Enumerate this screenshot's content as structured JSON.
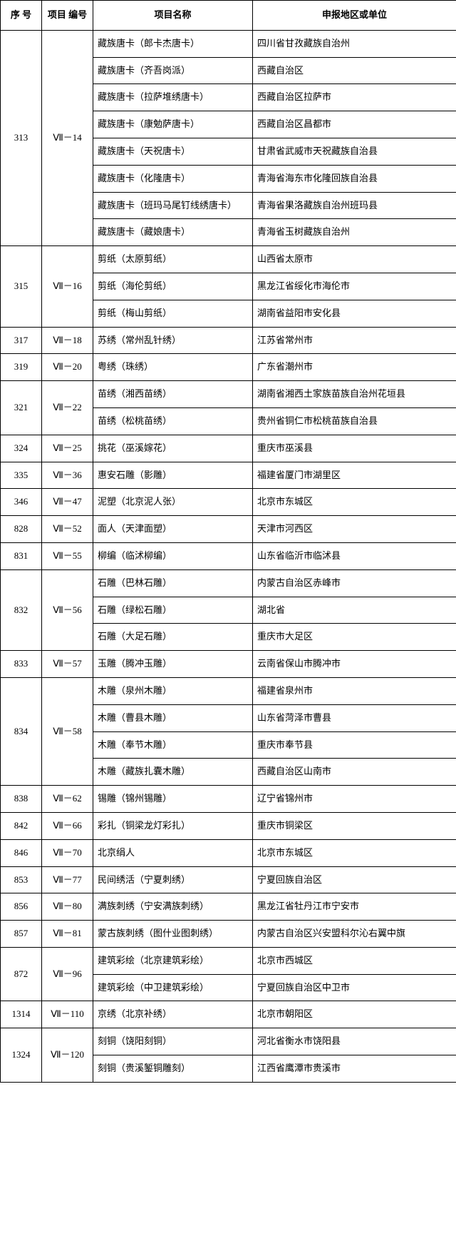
{
  "columns": [
    "序  号",
    "项目\n编号",
    "项目名称",
    "申报地区或单位"
  ],
  "groups": [
    {
      "seq": "313",
      "code": "Ⅶ－14",
      "items": [
        {
          "name": "藏族唐卡（郎卡杰唐卡）",
          "unit": "四川省甘孜藏族自治州"
        },
        {
          "name": "藏族唐卡（齐吾岗派）",
          "unit": "西藏自治区"
        },
        {
          "name": "藏族唐卡（拉萨堆绣唐卡）",
          "unit": "西藏自治区拉萨市"
        },
        {
          "name": "藏族唐卡（康勉萨唐卡）",
          "unit": "西藏自治区昌都市"
        },
        {
          "name": "藏族唐卡（天祝唐卡）",
          "unit": "甘肃省武威市天祝藏族自治县"
        },
        {
          "name": "藏族唐卡（化隆唐卡）",
          "unit": "青海省海东市化隆回族自治县"
        },
        {
          "name": "藏族唐卡（班玛马尾钉线绣唐卡）",
          "unit": "青海省果洛藏族自治州班玛县"
        },
        {
          "name": "藏族唐卡（藏娘唐卡）",
          "unit": "青海省玉树藏族自治州"
        }
      ]
    },
    {
      "seq": "315",
      "code": "Ⅶ－16",
      "items": [
        {
          "name": "剪纸（太原剪纸）",
          "unit": "山西省太原市"
        },
        {
          "name": "剪纸（海伦剪纸）",
          "unit": "黑龙江省绥化市海伦市"
        },
        {
          "name": "剪纸（梅山剪纸）",
          "unit": "湖南省益阳市安化县"
        }
      ]
    },
    {
      "seq": "317",
      "code": "Ⅶ－18",
      "items": [
        {
          "name": "苏绣（常州乱针绣）",
          "unit": "江苏省常州市"
        }
      ]
    },
    {
      "seq": "319",
      "code": "Ⅶ－20",
      "items": [
        {
          "name": "粤绣（珠绣）",
          "unit": "广东省潮州市"
        }
      ]
    },
    {
      "seq": "321",
      "code": "Ⅶ－22",
      "items": [
        {
          "name": "苗绣（湘西苗绣）",
          "unit": "湖南省湘西土家族苗族自治州花垣县"
        },
        {
          "name": "苗绣（松桃苗绣）",
          "unit": "贵州省铜仁市松桃苗族自治县"
        }
      ]
    },
    {
      "seq": "324",
      "code": "Ⅶ－25",
      "items": [
        {
          "name": "挑花（巫溪嫁花）",
          "unit": "重庆市巫溪县"
        }
      ]
    },
    {
      "seq": "335",
      "code": "Ⅶ－36",
      "items": [
        {
          "name": "惠安石雕（影雕）",
          "unit": "福建省厦门市湖里区"
        }
      ]
    },
    {
      "seq": "346",
      "code": "Ⅶ－47",
      "items": [
        {
          "name": "泥塑（北京泥人张）",
          "unit": "北京市东城区"
        }
      ]
    },
    {
      "seq": "828",
      "code": "Ⅶ－52",
      "items": [
        {
          "name": "面人（天津面塑）",
          "unit": "天津市河西区"
        }
      ]
    },
    {
      "seq": "831",
      "code": "Ⅶ－55",
      "items": [
        {
          "name": "柳编（临沭柳编）",
          "unit": "山东省临沂市临沭县"
        }
      ]
    },
    {
      "seq": "832",
      "code": "Ⅶ－56",
      "items": [
        {
          "name": "石雕（巴林石雕）",
          "unit": "内蒙古自治区赤峰市"
        },
        {
          "name": "石雕（绿松石雕）",
          "unit": "湖北省"
        },
        {
          "name": "石雕（大足石雕）",
          "unit": "重庆市大足区"
        }
      ]
    },
    {
      "seq": "833",
      "code": "Ⅶ－57",
      "items": [
        {
          "name": "玉雕（腾冲玉雕）",
          "unit": "云南省保山市腾冲市"
        }
      ]
    },
    {
      "seq": "834",
      "code": "Ⅶ－58",
      "items": [
        {
          "name": "木雕（泉州木雕）",
          "unit": "福建省泉州市"
        },
        {
          "name": "木雕（曹县木雕）",
          "unit": "山东省菏泽市曹县"
        },
        {
          "name": "木雕（奉节木雕）",
          "unit": "重庆市奉节县"
        },
        {
          "name": "木雕（藏族扎囊木雕）",
          "unit": "西藏自治区山南市"
        }
      ]
    },
    {
      "seq": "838",
      "code": "Ⅶ－62",
      "items": [
        {
          "name": "锡雕（锦州锡雕）",
          "unit": "辽宁省锦州市"
        }
      ]
    },
    {
      "seq": "842",
      "code": "Ⅶ－66",
      "items": [
        {
          "name": "彩扎（铜梁龙灯彩扎）",
          "unit": "重庆市铜梁区"
        }
      ]
    },
    {
      "seq": "846",
      "code": "Ⅶ－70",
      "items": [
        {
          "name": "北京绢人",
          "unit": "北京市东城区"
        }
      ]
    },
    {
      "seq": "853",
      "code": "Ⅶ－77",
      "items": [
        {
          "name": "民间绣活（宁夏刺绣）",
          "unit": "宁夏回族自治区"
        }
      ]
    },
    {
      "seq": "856",
      "code": "Ⅶ－80",
      "items": [
        {
          "name": "满族刺绣（宁安满族刺绣）",
          "unit": "黑龙江省牡丹江市宁安市"
        }
      ]
    },
    {
      "seq": "857",
      "code": "Ⅶ－81",
      "items": [
        {
          "name": "蒙古族刺绣（图什业图刺绣）",
          "unit": "内蒙古自治区兴安盟科尔沁右翼中旗"
        }
      ]
    },
    {
      "seq": "872",
      "code": "Ⅶ－96",
      "items": [
        {
          "name": "建筑彩绘（北京建筑彩绘）",
          "unit": "北京市西城区"
        },
        {
          "name": "建筑彩绘（中卫建筑彩绘）",
          "unit": "宁夏回族自治区中卫市"
        }
      ]
    },
    {
      "seq": "1314",
      "code": "Ⅶ－110",
      "items": [
        {
          "name": "京绣（北京补绣）",
          "unit": "北京市朝阳区"
        }
      ]
    },
    {
      "seq": "1324",
      "code": "Ⅶ－120",
      "items": [
        {
          "name": "刻铜（饶阳刻铜）",
          "unit": "河北省衡水市饶阳县"
        },
        {
          "name": "刻铜（贵溪錾铜雕刻）",
          "unit": "江西省鹰潭市贵溪市"
        }
      ]
    }
  ]
}
